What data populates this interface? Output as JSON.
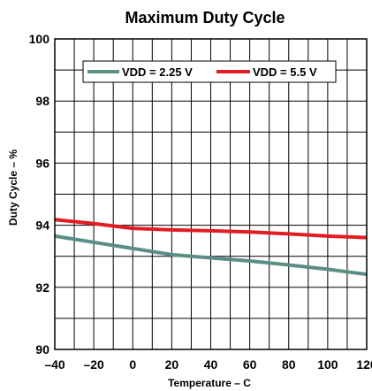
{
  "chart_data": {
    "type": "line",
    "title": "Maximum Duty Cycle",
    "xlabel": "Temperature –  C",
    "ylabel": "Duty Cycle – %",
    "xlim": [
      -40,
      120
    ],
    "ylim": [
      90,
      100
    ],
    "x_ticks": [
      "–40",
      "–20",
      "0",
      "20",
      "40",
      "60",
      "80",
      "100",
      "120"
    ],
    "x_tick_values": [
      -40,
      -20,
      0,
      20,
      40,
      60,
      80,
      100,
      120
    ],
    "y_ticks": [
      "90",
      "92",
      "94",
      "96",
      "98",
      "100"
    ],
    "y_tick_values": [
      90,
      92,
      94,
      96,
      98,
      100
    ],
    "grid": true,
    "legend_placement": "top-center",
    "series": [
      {
        "name": "VDD = 2.25 V",
        "color": "#5a8f86",
        "x": [
          -40,
          -20,
          0,
          20,
          40,
          60,
          80,
          100,
          120
        ],
        "y": [
          93.65,
          93.45,
          93.25,
          93.05,
          92.95,
          92.85,
          92.72,
          92.58,
          92.42
        ]
      },
      {
        "name": "VDD = 5.5 V",
        "color": "#e31c23",
        "x": [
          -40,
          -20,
          0,
          20,
          40,
          60,
          80,
          100,
          120
        ],
        "y": [
          94.18,
          94.05,
          93.9,
          93.85,
          93.82,
          93.78,
          93.72,
          93.65,
          93.6
        ]
      }
    ]
  }
}
